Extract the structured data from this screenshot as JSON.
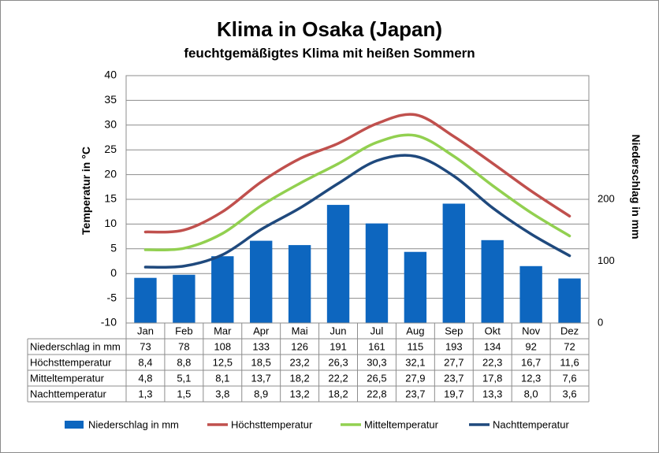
{
  "chart_data": {
    "type": "bar",
    "title": "Klima in Osaka (Japan)",
    "subtitle": "feuchtgemäßigtes Klima mit heißen Sommern",
    "categories": [
      "Jan",
      "Feb",
      "Mar",
      "Apr",
      "Mai",
      "Jun",
      "Jul",
      "Aug",
      "Sep",
      "Okt",
      "Nov",
      "Dez"
    ],
    "y_left": {
      "label": "Temperatur in °C",
      "ylim": [
        -10,
        40
      ],
      "ticks": [
        40,
        35,
        30,
        25,
        20,
        15,
        10,
        5,
        0,
        -5,
        -10
      ]
    },
    "y_right": {
      "label": "Niederschlag in mm",
      "ylim": [
        0,
        400
      ],
      "ticks": [
        0,
        100,
        200
      ]
    },
    "grid": true,
    "legend_position": "bottom",
    "series": [
      {
        "name": "Niederschlag in mm",
        "kind": "bar",
        "axis": "right",
        "color": "#0d66bf",
        "values": [
          73,
          78,
          108,
          133,
          126,
          191,
          161,
          115,
          193,
          134,
          92,
          72
        ],
        "labels": [
          "73",
          "78",
          "108",
          "133",
          "126",
          "191",
          "161",
          "115",
          "193",
          "134",
          "92",
          "72"
        ]
      },
      {
        "name": "Höchsttemperatur",
        "kind": "line",
        "axis": "left",
        "color": "#c0504d",
        "values": [
          8.4,
          8.8,
          12.5,
          18.5,
          23.2,
          26.3,
          30.3,
          32.1,
          27.7,
          22.3,
          16.7,
          11.6
        ],
        "labels": [
          "8,4",
          "8,8",
          "12,5",
          "18,5",
          "23,2",
          "26,3",
          "30,3",
          "32,1",
          "27,7",
          "22,3",
          "16,7",
          "11,6"
        ]
      },
      {
        "name": "Mitteltemperatur",
        "kind": "line",
        "axis": "left",
        "color": "#92d050",
        "values": [
          4.8,
          5.1,
          8.1,
          13.7,
          18.2,
          22.2,
          26.5,
          27.9,
          23.7,
          17.8,
          12.3,
          7.6
        ],
        "labels": [
          "4,8",
          "5,1",
          "8,1",
          "13,7",
          "18,2",
          "22,2",
          "26,5",
          "27,9",
          "23,7",
          "17,8",
          "12,3",
          "7,6"
        ]
      },
      {
        "name": "Nachttemperatur",
        "kind": "line",
        "axis": "left",
        "color": "#1f497d",
        "values": [
          1.3,
          1.5,
          3.8,
          8.9,
          13.2,
          18.2,
          22.8,
          23.7,
          19.7,
          13.3,
          8.0,
          3.6
        ],
        "labels": [
          "1,3",
          "1,5",
          "3,8",
          "8,9",
          "13,2",
          "18,2",
          "22,8",
          "23,7",
          "19,7",
          "13,3",
          "8,0",
          "3,6"
        ]
      }
    ]
  }
}
